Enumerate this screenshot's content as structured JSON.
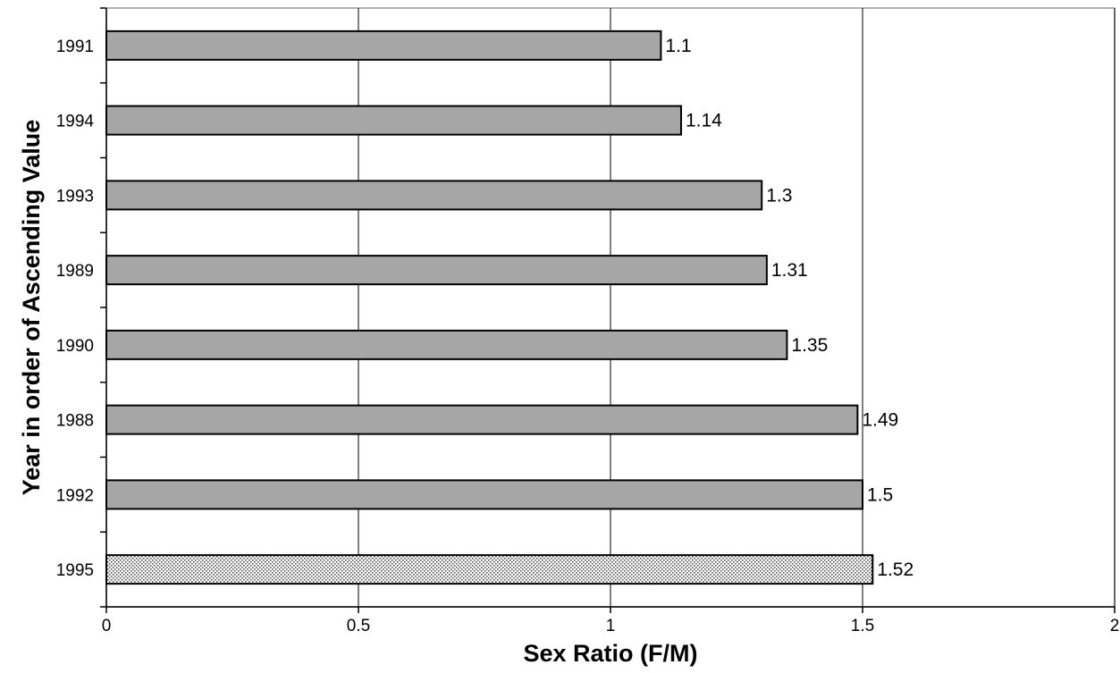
{
  "chart_data": {
    "type": "bar",
    "orientation": "horizontal",
    "title": "",
    "xlabel": "Sex Ratio (F/M)",
    "ylabel": "Year in order of Ascending Value",
    "xlim": [
      0,
      2
    ],
    "xticks": [
      "0",
      "0.5",
      "1",
      "1.5",
      "2"
    ],
    "grid": "vertical",
    "categories": [
      "1991",
      "1994",
      "1993",
      "1989",
      "1990",
      "1988",
      "1992",
      "1995"
    ],
    "values": [
      1.1,
      1.14,
      1.3,
      1.31,
      1.35,
      1.49,
      1.5,
      1.52
    ],
    "data_labels": [
      "1.1",
      "1.14",
      "1.3",
      "1.31",
      "1.35",
      "1.49",
      "1.5",
      "1.52"
    ],
    "highlighted_category": "1995",
    "colors": {
      "bar": "#a6a6a6",
      "highlight_bar": "dotted",
      "grid": "#000000",
      "border": "#999999"
    }
  }
}
